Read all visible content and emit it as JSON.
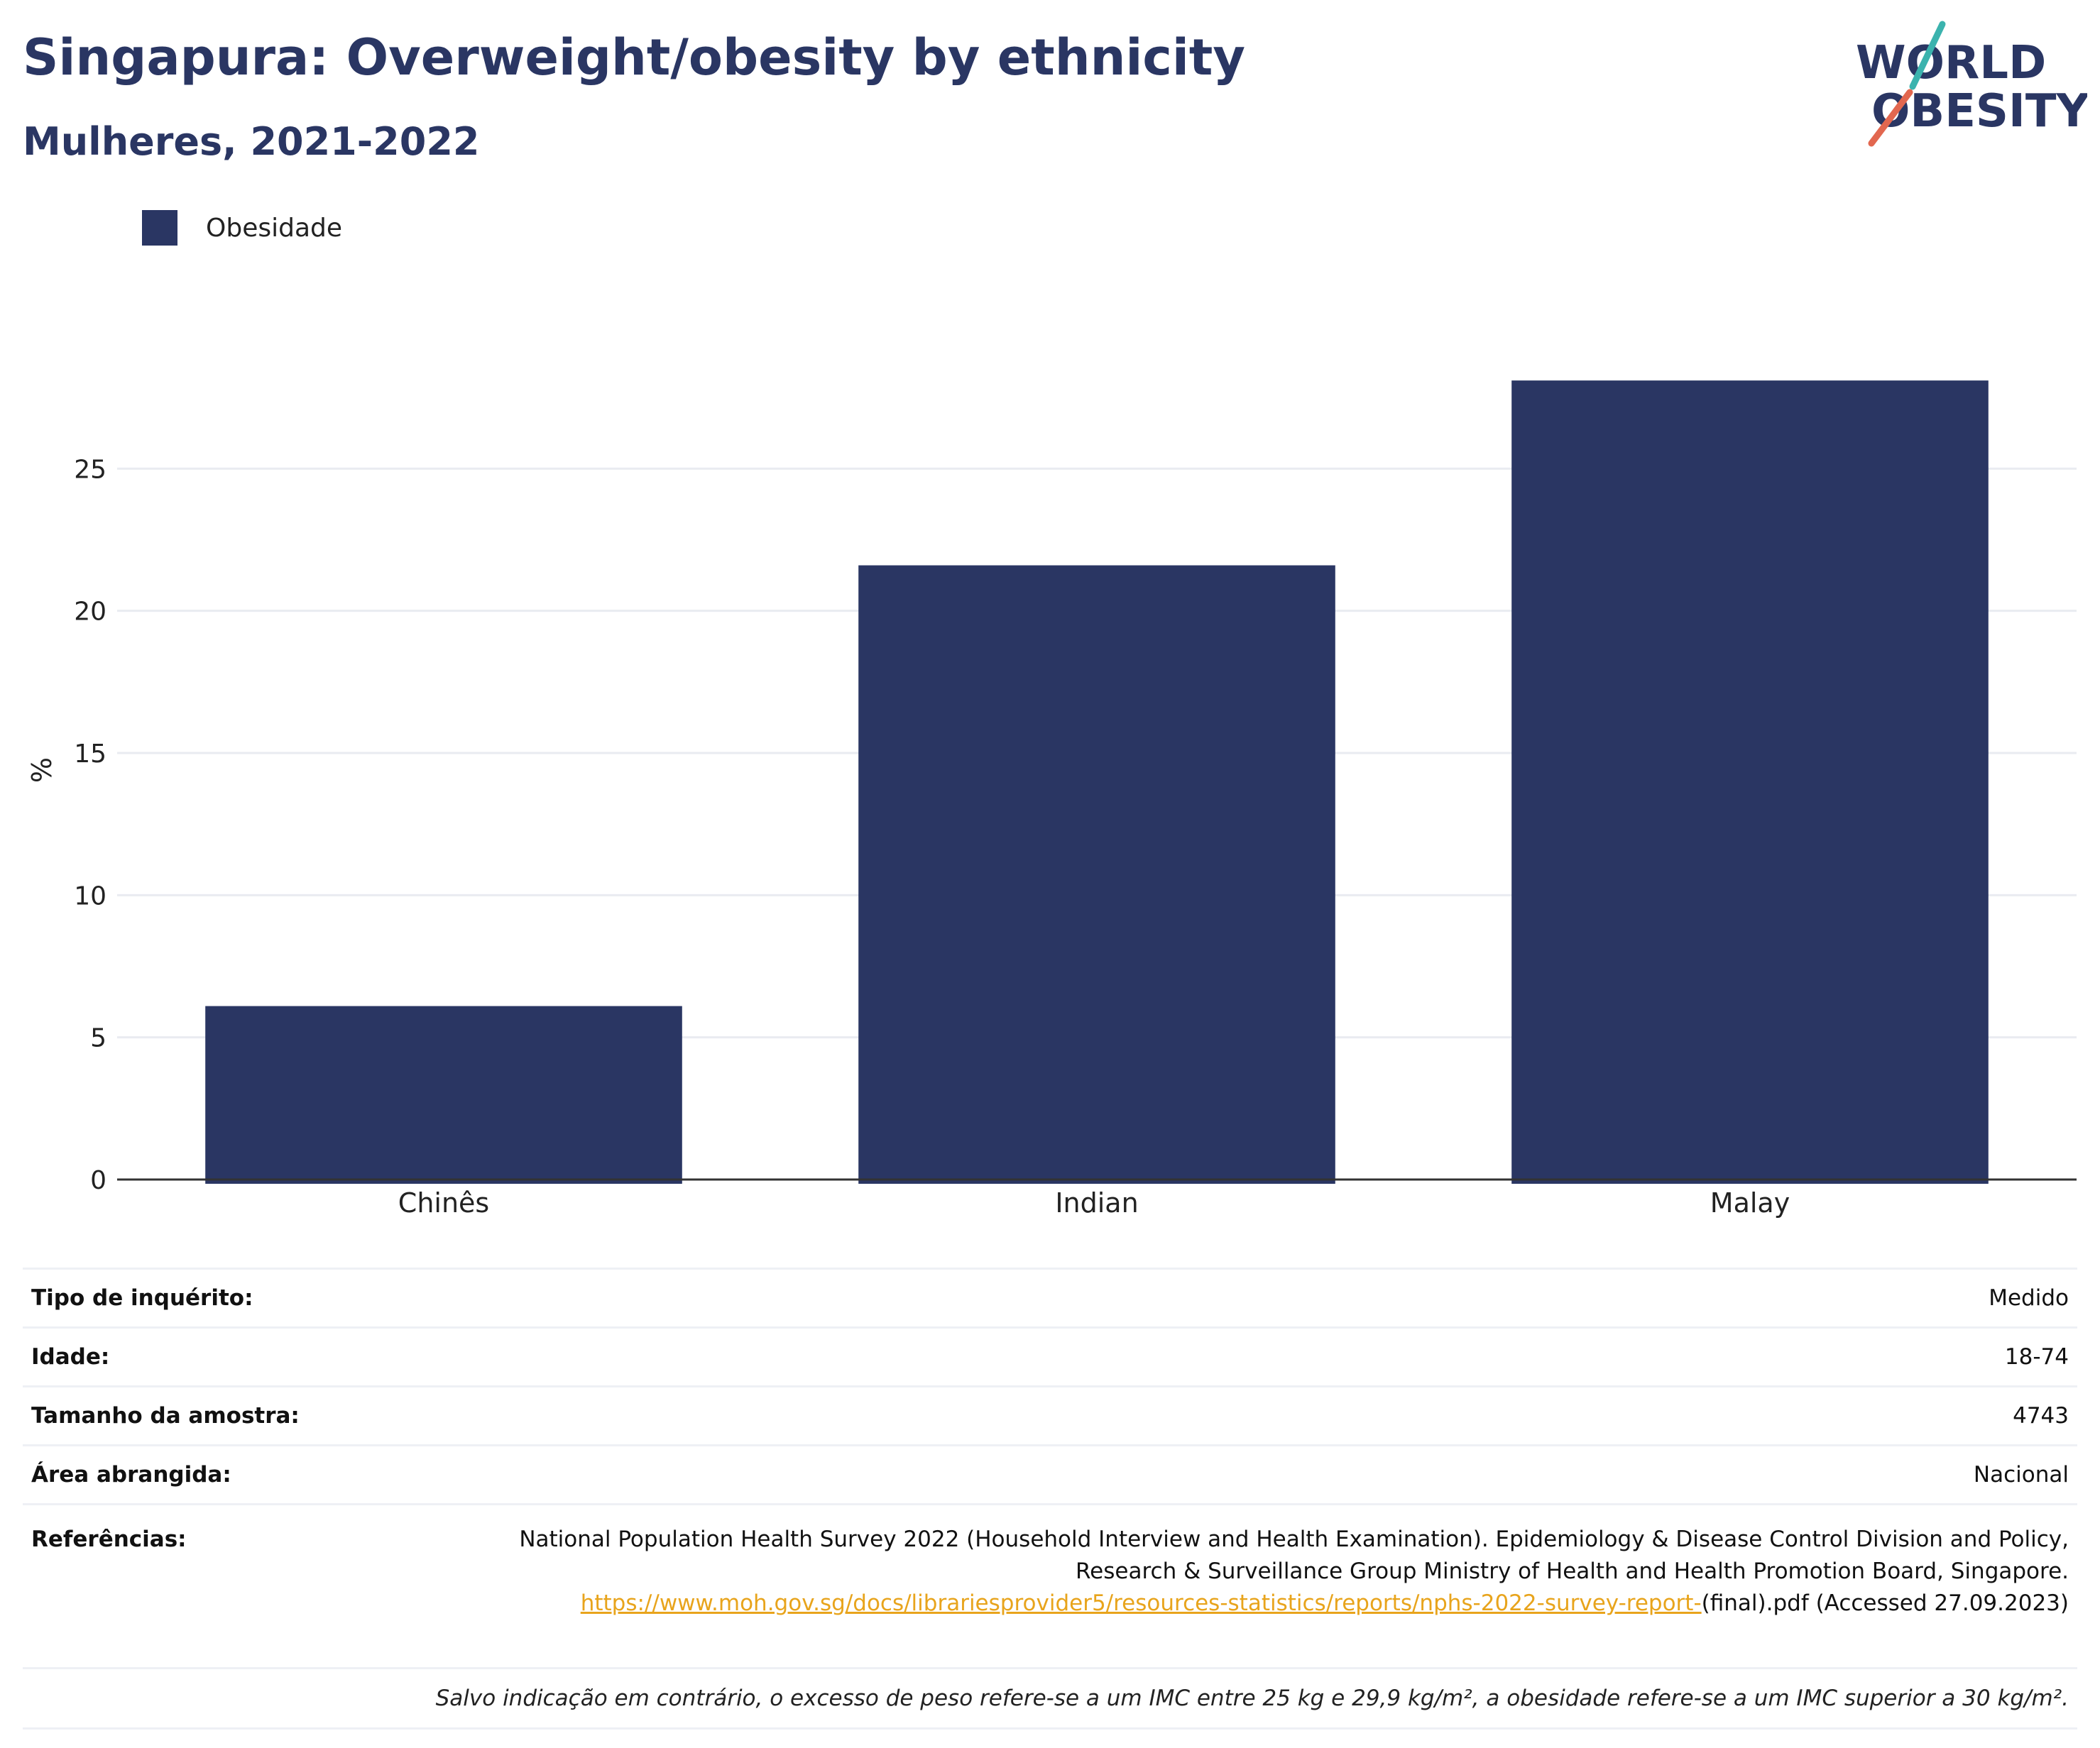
{
  "header": {
    "title": "Singapura: Overweight/obesity by ethnicity",
    "subtitle": "Mulheres, 2021-2022"
  },
  "logo": {
    "line1": "WORLD",
    "line2": "OBESITY"
  },
  "colors": {
    "bar": "#2a3663",
    "title": "#2a3663",
    "link": "#e8a41c",
    "grid": "#e9ebf1"
  },
  "chart_data": {
    "type": "bar",
    "categories": [
      "Chinês",
      "Indian",
      "Malay"
    ],
    "series": [
      {
        "name": "Obesidade",
        "values": [
          6.1,
          21.6,
          28.1
        ]
      }
    ],
    "ylabel": "%",
    "xlabel": "",
    "ylim": [
      0,
      30
    ],
    "yticks": [
      0,
      5,
      10,
      15,
      20,
      25
    ],
    "grid": true,
    "legend_position": "top-left"
  },
  "meta": {
    "rows": [
      {
        "label": "Tipo de inquérito:",
        "value": "Medido"
      },
      {
        "label": "Idade:",
        "value": "18-74"
      },
      {
        "label": "Tamanho da amostra:",
        "value": "4743"
      },
      {
        "label": "Área abrangida:",
        "value": "Nacional"
      }
    ],
    "references": {
      "label": "Referências:",
      "text_before": "National Population Health Survey 2022 (Household Interview and Health Examination). Epidemiology & Disease Control Division and Policy, Research & Surveillance Group Ministry of Health and Health Promotion Board, Singapore.",
      "link": "https://www.moh.gov.sg/docs/librariesprovider5/resources-statistics/reports/nphs-2022-survey-report-",
      "text_after": "(final).pdf (Accessed 27.09.2023)"
    },
    "note": "Salvo indicação em contrário, o excesso de peso refere-se a um IMC entre 25 kg e 29,9 kg/m², a obesidade refere-se a um IMC superior a 30 kg/m²."
  }
}
